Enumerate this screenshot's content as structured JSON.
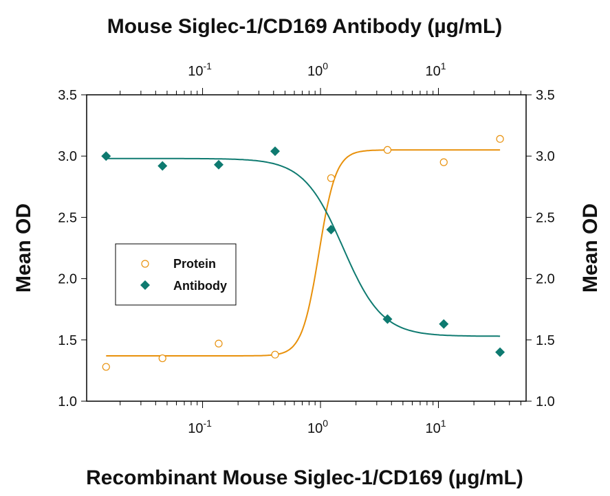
{
  "chart_data": {
    "type": "scatter",
    "title": "Mouse Siglec-1/CD169 Antibody (µg/mL)",
    "xlabel": "Recombinant Mouse Siglec-1/CD169 (µg/mL)",
    "ylabel": "Mean OD",
    "ylabel_right": "Mean OD",
    "x_scale": "log",
    "xlim": [
      0.0104,
      55.4
    ],
    "ylim": [
      1.0,
      3.5
    ],
    "x_ticks": [
      {
        "base": "10",
        "exp": "-1",
        "value": 0.1
      },
      {
        "base": "10",
        "exp": "0",
        "value": 1
      },
      {
        "base": "10",
        "exp": "1",
        "value": 10
      }
    ],
    "y_ticks": [
      "1.0",
      "1.5",
      "2.0",
      "2.5",
      "3.0",
      "3.5"
    ],
    "grid": false,
    "legend_position": "center-left",
    "series": [
      {
        "name": "Protein",
        "marker": "open-circle",
        "color": "#E8900A",
        "x": [
          0.0152,
          0.0457,
          0.137,
          0.412,
          1.23,
          3.7,
          11.1,
          33.3
        ],
        "y": [
          1.28,
          1.35,
          1.47,
          1.38,
          2.82,
          3.05,
          2.95,
          3.14
        ],
        "fit": {
          "bottom": 1.37,
          "top": 3.05,
          "ec50": 0.97,
          "hill": 6.0
        }
      },
      {
        "name": "Antibody",
        "marker": "filled-diamond",
        "color": "#0E7A70",
        "x": [
          0.0152,
          0.0457,
          0.137,
          0.412,
          1.23,
          3.7,
          11.1,
          33.3
        ],
        "y": [
          3.0,
          2.92,
          2.93,
          3.04,
          2.4,
          1.67,
          1.63,
          1.4
        ],
        "fit": {
          "bottom": 1.53,
          "top": 2.98,
          "ec50": 1.55,
          "hill": -2.6
        }
      }
    ]
  }
}
